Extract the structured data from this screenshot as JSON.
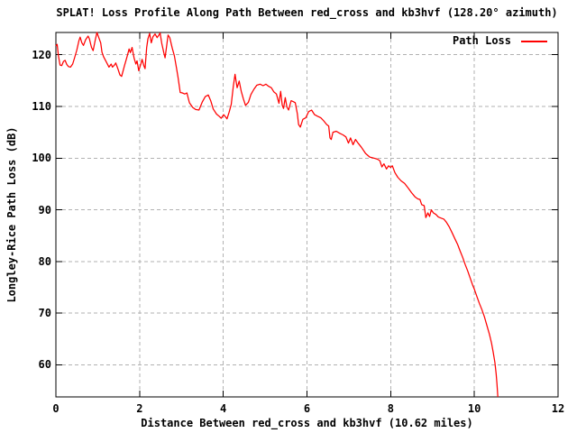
{
  "title": "SPLAT! Loss Profile Along Path Between red_cross and kb3hvf (128.20° azimuth)",
  "legend": {
    "label": "Path Loss"
  },
  "colors": {
    "curve": "#ff0000",
    "grid": "#b2b2b2",
    "border": "#000000",
    "background": "#ffffff",
    "text": "#000000"
  },
  "chart_data": {
    "type": "line",
    "title": "SPLAT! Loss Profile Along Path Between red_cross and kb3hvf (128.20° azimuth)",
    "xlabel": "Distance Between red_cross and kb3hvf (10.62 miles)",
    "ylabel": "Longley-Rice Path Loss (dB)",
    "xlim": [
      0,
      12
    ],
    "ylim": [
      53.8,
      124.3
    ],
    "xticks": [
      0,
      2,
      4,
      6,
      8,
      10,
      12
    ],
    "yticks": [
      60,
      70,
      80,
      90,
      100,
      110,
      120
    ],
    "grid": true,
    "legend_position": "top-right",
    "series": [
      {
        "name": "Path Loss",
        "color": "#ff0000",
        "points": [
          [
            0.0,
            121.7
          ],
          [
            0.03,
            122.0
          ],
          [
            0.06,
            119.8
          ],
          [
            0.1,
            118.0
          ],
          [
            0.14,
            117.9
          ],
          [
            0.18,
            118.7
          ],
          [
            0.22,
            118.9
          ],
          [
            0.26,
            118.1
          ],
          [
            0.3,
            117.7
          ],
          [
            0.35,
            117.6
          ],
          [
            0.4,
            118.2
          ],
          [
            0.45,
            119.5
          ],
          [
            0.5,
            120.9
          ],
          [
            0.55,
            122.7
          ],
          [
            0.58,
            123.4
          ],
          [
            0.62,
            122.3
          ],
          [
            0.66,
            121.8
          ],
          [
            0.71,
            122.9
          ],
          [
            0.77,
            123.6
          ],
          [
            0.8,
            123.1
          ],
          [
            0.85,
            121.4
          ],
          [
            0.89,
            120.8
          ],
          [
            0.94,
            122.8
          ],
          [
            0.98,
            124.3
          ],
          [
            1.03,
            123.2
          ],
          [
            1.07,
            122.3
          ],
          [
            1.1,
            120.5
          ],
          [
            1.14,
            119.6
          ],
          [
            1.21,
            118.5
          ],
          [
            1.27,
            117.6
          ],
          [
            1.32,
            118.2
          ],
          [
            1.35,
            117.6
          ],
          [
            1.4,
            118.0
          ],
          [
            1.43,
            118.4
          ],
          [
            1.48,
            117.3
          ],
          [
            1.53,
            116.1
          ],
          [
            1.57,
            115.8
          ],
          [
            1.64,
            117.9
          ],
          [
            1.7,
            119.6
          ],
          [
            1.75,
            121.1
          ],
          [
            1.78,
            120.4
          ],
          [
            1.82,
            121.4
          ],
          [
            1.87,
            119.3
          ],
          [
            1.91,
            118.2
          ],
          [
            1.94,
            118.8
          ],
          [
            1.98,
            116.9
          ],
          [
            2.03,
            118.2
          ],
          [
            2.06,
            119.1
          ],
          [
            2.1,
            117.9
          ],
          [
            2.13,
            117.3
          ],
          [
            2.17,
            121.4
          ],
          [
            2.2,
            123.1
          ],
          [
            2.24,
            124.1
          ],
          [
            2.28,
            122.3
          ],
          [
            2.32,
            123.5
          ],
          [
            2.37,
            124.0
          ],
          [
            2.42,
            123.3
          ],
          [
            2.46,
            123.8
          ],
          [
            2.49,
            124.2
          ],
          [
            2.53,
            122.2
          ],
          [
            2.58,
            120.3
          ],
          [
            2.61,
            119.4
          ],
          [
            2.65,
            121.9
          ],
          [
            2.68,
            123.8
          ],
          [
            2.72,
            123.3
          ],
          [
            2.78,
            121.3
          ],
          [
            2.83,
            119.8
          ],
          [
            2.88,
            117.5
          ],
          [
            2.92,
            115.6
          ],
          [
            2.97,
            112.7
          ],
          [
            3.02,
            112.6
          ],
          [
            3.08,
            112.4
          ],
          [
            3.13,
            112.6
          ],
          [
            3.19,
            110.7
          ],
          [
            3.27,
            109.8
          ],
          [
            3.34,
            109.4
          ],
          [
            3.42,
            109.3
          ],
          [
            3.5,
            110.9
          ],
          [
            3.57,
            111.9
          ],
          [
            3.64,
            112.2
          ],
          [
            3.7,
            111.1
          ],
          [
            3.76,
            109.5
          ],
          [
            3.84,
            108.5
          ],
          [
            3.9,
            108.1
          ],
          [
            3.95,
            107.7
          ],
          [
            4.01,
            108.4
          ],
          [
            4.05,
            108.0
          ],
          [
            4.09,
            107.6
          ],
          [
            4.14,
            108.9
          ],
          [
            4.19,
            110.4
          ],
          [
            4.24,
            113.9
          ],
          [
            4.28,
            116.2
          ],
          [
            4.33,
            113.6
          ],
          [
            4.38,
            114.9
          ],
          [
            4.43,
            112.9
          ],
          [
            4.48,
            111.5
          ],
          [
            4.53,
            110.2
          ],
          [
            4.6,
            110.8
          ],
          [
            4.66,
            112.3
          ],
          [
            4.73,
            113.3
          ],
          [
            4.8,
            114.1
          ],
          [
            4.88,
            114.3
          ],
          [
            4.95,
            114.0
          ],
          [
            5.02,
            114.3
          ],
          [
            5.08,
            113.9
          ],
          [
            5.15,
            113.6
          ],
          [
            5.21,
            112.8
          ],
          [
            5.27,
            112.4
          ],
          [
            5.33,
            110.6
          ],
          [
            5.37,
            112.9
          ],
          [
            5.41,
            110.2
          ],
          [
            5.44,
            109.6
          ],
          [
            5.48,
            111.7
          ],
          [
            5.52,
            109.9
          ],
          [
            5.56,
            109.3
          ],
          [
            5.62,
            111.1
          ],
          [
            5.68,
            110.9
          ],
          [
            5.72,
            110.7
          ],
          [
            5.77,
            108.6
          ],
          [
            5.8,
            106.5
          ],
          [
            5.84,
            106.0
          ],
          [
            5.9,
            107.5
          ],
          [
            5.97,
            107.8
          ],
          [
            6.04,
            109.0
          ],
          [
            6.11,
            109.3
          ],
          [
            6.18,
            108.4
          ],
          [
            6.25,
            108.1
          ],
          [
            6.33,
            107.8
          ],
          [
            6.4,
            107.2
          ],
          [
            6.47,
            106.5
          ],
          [
            6.52,
            106.2
          ],
          [
            6.55,
            103.9
          ],
          [
            6.58,
            103.6
          ],
          [
            6.62,
            105.0
          ],
          [
            6.7,
            105.2
          ],
          [
            6.78,
            104.8
          ],
          [
            6.86,
            104.5
          ],
          [
            6.93,
            104.1
          ],
          [
            6.99,
            102.9
          ],
          [
            7.04,
            103.9
          ],
          [
            7.1,
            102.6
          ],
          [
            7.16,
            103.6
          ],
          [
            7.23,
            102.8
          ],
          [
            7.3,
            102.1
          ],
          [
            7.4,
            100.9
          ],
          [
            7.5,
            100.2
          ],
          [
            7.6,
            100.0
          ],
          [
            7.68,
            99.8
          ],
          [
            7.74,
            99.5
          ],
          [
            7.79,
            98.3
          ],
          [
            7.84,
            98.9
          ],
          [
            7.9,
            97.9
          ],
          [
            7.95,
            98.5
          ],
          [
            8.0,
            98.2
          ],
          [
            8.04,
            98.5
          ],
          [
            8.1,
            97.2
          ],
          [
            8.17,
            96.3
          ],
          [
            8.25,
            95.6
          ],
          [
            8.33,
            95.1
          ],
          [
            8.42,
            94.2
          ],
          [
            8.5,
            93.3
          ],
          [
            8.58,
            92.5
          ],
          [
            8.65,
            92.1
          ],
          [
            8.7,
            92.0
          ],
          [
            8.74,
            91.0
          ],
          [
            8.8,
            90.8
          ],
          [
            8.84,
            88.5
          ],
          [
            8.89,
            89.4
          ],
          [
            8.93,
            88.7
          ],
          [
            8.97,
            90.0
          ],
          [
            9.02,
            89.4
          ],
          [
            9.08,
            89.1
          ],
          [
            9.14,
            88.6
          ],
          [
            9.2,
            88.4
          ],
          [
            9.27,
            88.2
          ],
          [
            9.33,
            87.6
          ],
          [
            9.4,
            86.7
          ],
          [
            9.47,
            85.5
          ],
          [
            9.54,
            84.3
          ],
          [
            9.6,
            83.3
          ],
          [
            9.66,
            82.0
          ],
          [
            9.72,
            80.8
          ],
          [
            9.78,
            79.4
          ],
          [
            9.84,
            78.2
          ],
          [
            9.9,
            76.8
          ],
          [
            9.96,
            75.4
          ],
          [
            10.0,
            74.6
          ],
          [
            10.06,
            73.2
          ],
          [
            10.12,
            71.9
          ],
          [
            10.18,
            70.7
          ],
          [
            10.24,
            69.3
          ],
          [
            10.3,
            67.6
          ],
          [
            10.36,
            65.9
          ],
          [
            10.41,
            64.2
          ],
          [
            10.45,
            62.4
          ],
          [
            10.49,
            60.5
          ],
          [
            10.52,
            58.3
          ],
          [
            10.54,
            56.4
          ],
          [
            10.56,
            53.8
          ]
        ]
      }
    ]
  }
}
